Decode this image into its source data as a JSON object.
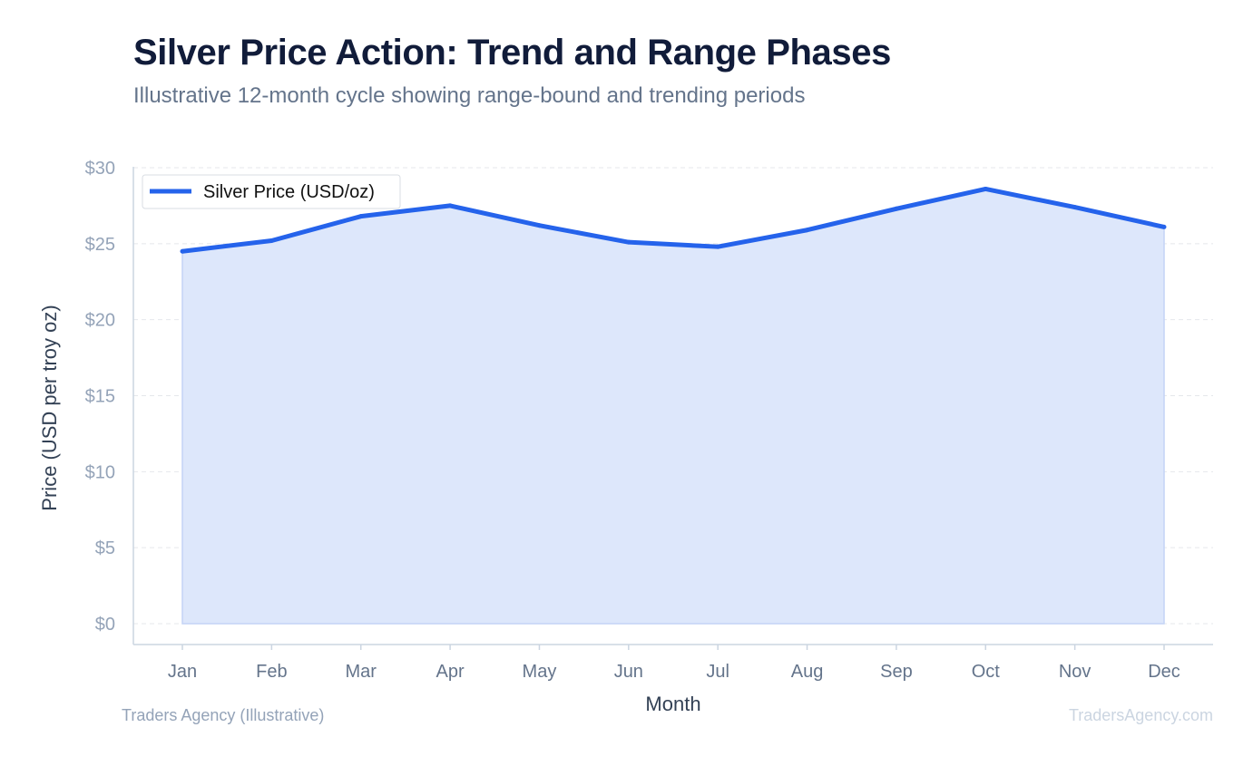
{
  "header": {
    "title": "Silver Price Action: Trend and Range Phases",
    "subtitle": "Illustrative 12-month cycle showing range-bound and trending periods"
  },
  "footer": {
    "source": "Traders Agency (Illustrative)",
    "watermark": "TradersAgency.com"
  },
  "colors": {
    "line": "#2563eb",
    "area": "#dde7fb",
    "grid": "#e5e7eb",
    "axis": "#cbd5e1"
  },
  "chart_data": {
    "type": "area",
    "title": "Silver Price Action: Trend and Range Phases",
    "subtitle": "Illustrative 12-month cycle showing range-bound and trending periods",
    "xlabel": "Month",
    "ylabel": "Price (USD per troy oz)",
    "categories": [
      "Jan",
      "Feb",
      "Mar",
      "Apr",
      "May",
      "Jun",
      "Jul",
      "Aug",
      "Sep",
      "Oct",
      "Nov",
      "Dec"
    ],
    "series": [
      {
        "name": "Silver Price (USD/oz)",
        "values": [
          24.5,
          25.2,
          26.8,
          27.5,
          26.2,
          25.1,
          24.8,
          25.9,
          27.3,
          28.6,
          27.4,
          26.1
        ]
      }
    ],
    "ylim": [
      0,
      30
    ],
    "yticks": [
      0,
      5,
      10,
      15,
      20,
      25,
      30
    ],
    "ytick_labels": [
      "$0",
      "$5",
      "$10",
      "$15",
      "$20",
      "$25",
      "$30"
    ],
    "grid": true,
    "legend_position": "top-left"
  }
}
